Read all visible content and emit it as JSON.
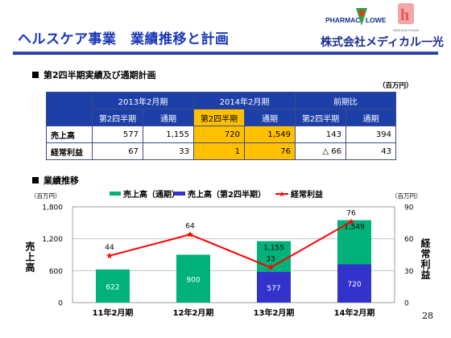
{
  "header": {
    "title": "ヘルスケア事業　業績推移と計画",
    "company": "株式会社メディカル一光",
    "logo_pharmacy_text": "PHARMAC",
    "logo_flower_text": "LOWER",
    "logo_hh_text": "Harmony House"
  },
  "section1": {
    "title": "第2四半期実績及び通期計画",
    "unit": "（百万円）"
  },
  "table": {
    "group_headers": [
      "2013年2月期",
      "2014年2月期",
      "前期比"
    ],
    "sub_headers": [
      "第2四半期",
      "通期",
      "第2四半期",
      "通期",
      "第2四半期",
      "通期"
    ],
    "rows": [
      {
        "label": "売上高",
        "values": [
          "577",
          "1,155",
          "720",
          "1,549",
          "143",
          "394"
        ]
      },
      {
        "label": "経常利益",
        "values": [
          "67",
          "33",
          "1",
          "76",
          "△ 66",
          "43"
        ]
      }
    ]
  },
  "section2": {
    "title": "業績推移",
    "unit_left": "（百万円）",
    "unit_right": "（百万円）"
  },
  "colors": {
    "annual_sales": "#00b27a",
    "q2_sales": "#3333cc",
    "profit": "#ff0000",
    "header_blue": "#1d3fa8",
    "highlight": "#ffc000"
  },
  "chart_data": {
    "type": "bar",
    "categories": [
      "11年2月期",
      "12年2月期",
      "13年2月期",
      "14年2月期"
    ],
    "series": [
      {
        "name": "売上高（通期）",
        "type": "bar",
        "axis": "left",
        "values": [
          622,
          900,
          1155,
          1549
        ],
        "labels": [
          "622",
          "900",
          "1,155",
          "1,549"
        ]
      },
      {
        "name": "売上高（第2四半期）",
        "type": "bar",
        "axis": "left",
        "values": [
          null,
          null,
          577,
          720
        ],
        "labels": [
          "",
          "",
          "577",
          "720"
        ]
      },
      {
        "name": "経常利益",
        "type": "line",
        "axis": "right",
        "values": [
          44,
          64,
          33,
          76
        ],
        "labels": [
          "44",
          "64",
          "33",
          "76"
        ]
      }
    ],
    "ylabel": "売上高",
    "y2label": "経常利益",
    "ylim": [
      0,
      1800
    ],
    "y2lim": [
      0,
      90
    ],
    "yticks": [
      "0",
      "600",
      "1,200",
      "1,800"
    ],
    "y2ticks": [
      "0",
      "30",
      "60",
      "90"
    ],
    "legend_position": "top"
  },
  "page_number": "28"
}
